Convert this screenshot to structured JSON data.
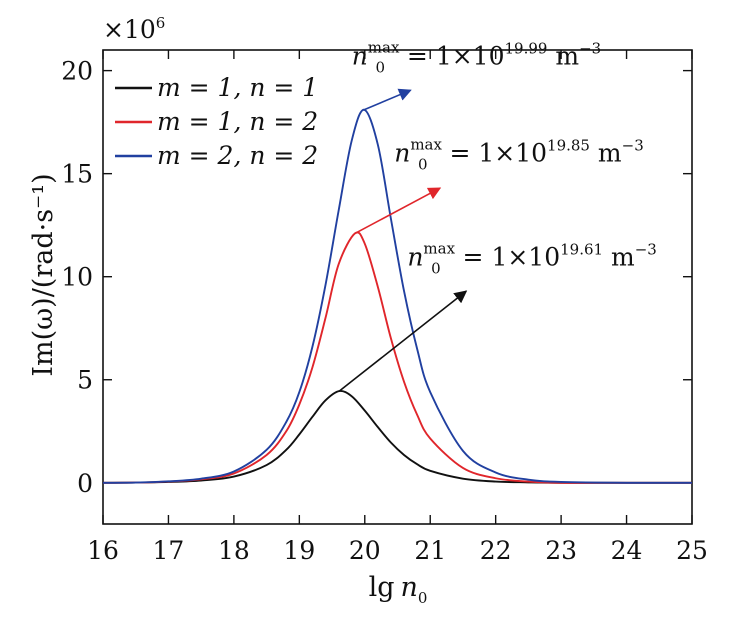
{
  "chart_data": {
    "type": "line",
    "scale_note": "×10",
    "scale_exp": "6",
    "xlabel_main": "lg",
    "xlabel_var": "n",
    "xlabel_sub": "0",
    "ylabel": "Im(ω)/(rad·s⁻¹)",
    "xlim": [
      16,
      25
    ],
    "ylim": [
      -2,
      21
    ],
    "xticks": [
      16,
      17,
      18,
      19,
      20,
      21,
      22,
      23,
      24,
      25
    ],
    "yticks": [
      0,
      5,
      10,
      15,
      20
    ],
    "legend_position": "top-left",
    "series": [
      {
        "name": "m = 1,  n = 1",
        "color": "#111111",
        "peak_x": 19.61,
        "peak_y": 4.45,
        "x": [
          16,
          16.5,
          17,
          17.5,
          18,
          18.5,
          18.8,
          19.0,
          19.2,
          19.4,
          19.61,
          19.8,
          20.0,
          20.2,
          20.4,
          20.6,
          20.8,
          21.0,
          21.5,
          22,
          22.5,
          23,
          24,
          25
        ],
        "y": [
          0.0,
          0.01,
          0.04,
          0.11,
          0.3,
          0.86,
          1.6,
          2.35,
          3.2,
          4.0,
          4.45,
          4.2,
          3.5,
          2.7,
          1.95,
          1.35,
          0.9,
          0.58,
          0.2,
          0.06,
          0.02,
          0.0,
          0.0,
          0.0
        ]
      },
      {
        "name": "m = 1,  n = 2",
        "color": "#e0262b",
        "peak_x": 19.85,
        "peak_y": 12.1,
        "x": [
          16,
          16.5,
          17,
          17.5,
          18,
          18.5,
          18.8,
          19.0,
          19.2,
          19.4,
          19.6,
          19.85,
          20.0,
          20.2,
          20.4,
          20.6,
          20.8,
          21.0,
          21.5,
          22,
          22.5,
          23,
          24,
          25
        ],
        "y": [
          0.0,
          0.01,
          0.06,
          0.17,
          0.45,
          1.35,
          2.5,
          3.8,
          5.6,
          8.0,
          10.6,
          12.1,
          11.6,
          9.5,
          7.0,
          4.9,
          3.3,
          2.15,
          0.72,
          0.22,
          0.06,
          0.0,
          0.0,
          0.0
        ]
      },
      {
        "name": "m = 2,  n = 2",
        "color": "#2140a0",
        "peak_x": 19.99,
        "peak_y": 18.1,
        "x": [
          16,
          16.5,
          17,
          17.5,
          18,
          18.5,
          18.8,
          19.0,
          19.2,
          19.4,
          19.6,
          19.8,
          19.99,
          20.2,
          20.4,
          20.6,
          20.8,
          21.0,
          21.5,
          22,
          22.5,
          23,
          24,
          25
        ],
        "y": [
          0.0,
          0.01,
          0.07,
          0.2,
          0.55,
          1.6,
          2.95,
          4.4,
          6.6,
          9.6,
          13.2,
          16.6,
          18.1,
          16.4,
          12.8,
          9.3,
          6.5,
          4.4,
          1.55,
          0.5,
          0.15,
          0.04,
          0.0,
          0.0
        ]
      }
    ],
    "annotations": [
      {
        "series": 2,
        "color": "#2140a0",
        "arrow_to": [
          20.7,
          19.05
        ],
        "label_pre": "n",
        "label_sub": "0",
        "label_sup": "max",
        "label_mid": " = 1×10",
        "label_exp": "19.99",
        "label_unit": " m",
        "label_unit_exp": "−3",
        "text_at": [
          19.8,
          20.3
        ]
      },
      {
        "series": 1,
        "color": "#e0262b",
        "arrow_to": [
          21.15,
          14.3
        ],
        "label_pre": "n",
        "label_sub": "0",
        "label_sup": "max",
        "label_mid": " = 1×10",
        "label_exp": "19.85",
        "label_unit": " m",
        "label_unit_exp": "−3",
        "text_at": [
          20.45,
          15.6
        ]
      },
      {
        "series": 0,
        "color": "#111111",
        "arrow_to": [
          21.55,
          9.3
        ],
        "label_pre": "n",
        "label_sub": "0",
        "label_sup": "max",
        "label_mid": " = 1×10",
        "label_exp": "19.61",
        "label_unit": " m",
        "label_unit_exp": "−3",
        "text_at": [
          20.65,
          10.55
        ]
      }
    ]
  }
}
